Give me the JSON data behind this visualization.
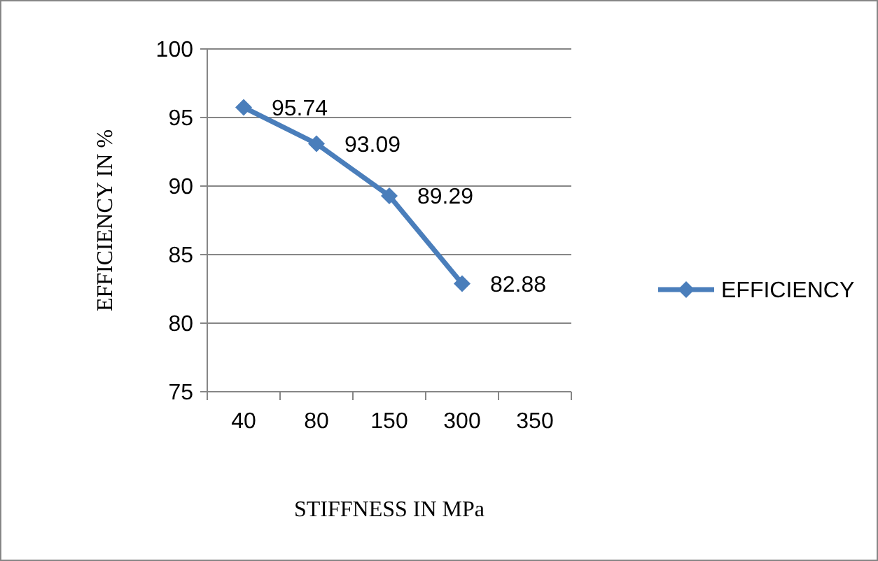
{
  "chart_data": {
    "type": "line",
    "xlabel": "STIFFNESS IN MPa",
    "ylabel": "EFFICIENCY IN %",
    "categories": [
      "40",
      "80",
      "150",
      "300",
      "350"
    ],
    "series": [
      {
        "name": "EFFICIENCY",
        "color": "#4a7ebb",
        "values": [
          95.74,
          93.09,
          89.29,
          82.88,
          null
        ]
      }
    ],
    "ylim": [
      75,
      100
    ],
    "yticks": [
      75,
      80,
      85,
      90,
      95,
      100
    ],
    "grid": "y",
    "legend": "right",
    "marker": "diamond",
    "line_style": "solid",
    "data_labels": true
  }
}
